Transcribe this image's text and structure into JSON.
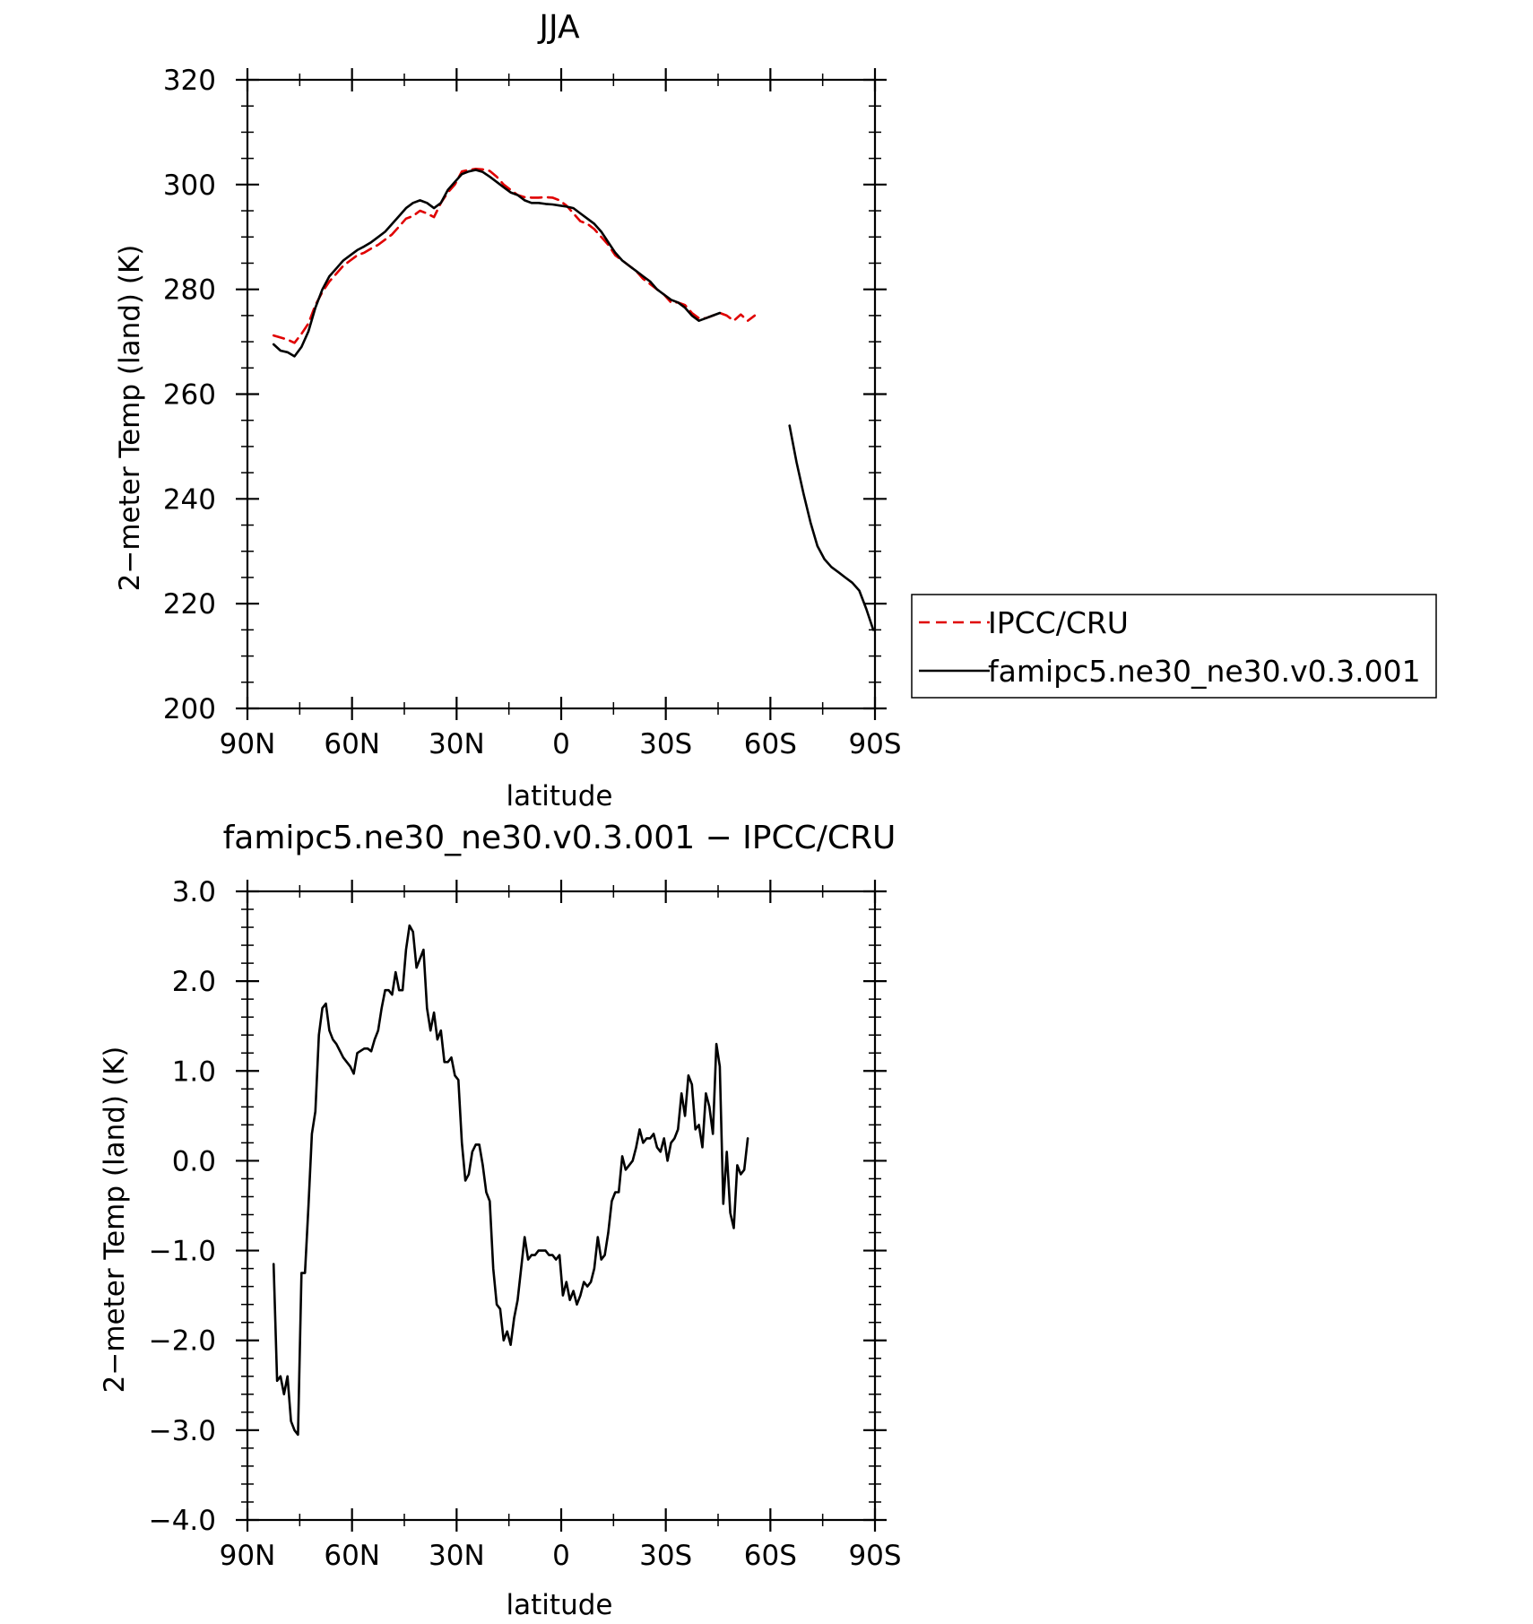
{
  "chart_data": [
    {
      "type": "line",
      "title": "JJA",
      "xlabel": "latitude",
      "ylabel": "2−meter Temp (land) (K)",
      "xlim": [
        90,
        -90
      ],
      "ylim": [
        200,
        320
      ],
      "x_tick_values": [
        90,
        60,
        30,
        0,
        -30,
        -60,
        -90
      ],
      "x_tick_labels": [
        "90N",
        "60N",
        "30N",
        "0",
        "30S",
        "60S",
        "90S"
      ],
      "y_tick_values": [
        200,
        220,
        240,
        260,
        280,
        300,
        320
      ],
      "y_tick_labels": [
        "200",
        "220",
        "240",
        "260",
        "280",
        "300",
        "320"
      ],
      "grid": false,
      "legend": {
        "placement": "outside-right",
        "entries": [
          "IPCC/CRU",
          "famipc5.ne30_ne30.v0.3.001"
        ]
      },
      "series": [
        {
          "name": "IPCC/CRU",
          "color": "#e00000",
          "dash": "dashed",
          "x": [
            82.5,
            80.5,
            78.5,
            76.5,
            74.5,
            72.5,
            70.5,
            68.5,
            66.5,
            64.5,
            62.5,
            60.5,
            58.5,
            56.5,
            54.5,
            52.5,
            50.5,
            48.5,
            46.5,
            44.5,
            42.5,
            40.5,
            38.5,
            36.5,
            34.5,
            32.5,
            30.5,
            28.5,
            26.5,
            24.5,
            22.5,
            20.5,
            18.5,
            16.5,
            14.5,
            12.5,
            10.5,
            8.5,
            6.5,
            4.5,
            2.5,
            0.5,
            -1.5,
            -3.5,
            -5.5,
            -7.5,
            -9.5,
            -11.5,
            -13.5,
            -15.5,
            -17.5,
            -19.5,
            -21.5,
            -23.5,
            -25.5,
            -27.5,
            -29.5,
            -31.5,
            -33.5,
            -35.5,
            -37.5,
            -39.5,
            -41.5,
            -43.5,
            -45.5,
            -47.5,
            -49.5,
            -51.5,
            -53.5,
            -55.5
          ],
          "values": [
            271.2,
            270.8,
            270.4,
            269.8,
            271.5,
            273.5,
            277.0,
            279.5,
            281.5,
            283.0,
            284.5,
            285.5,
            286.5,
            287.0,
            287.8,
            288.5,
            289.5,
            290.5,
            292.0,
            293.5,
            294.0,
            295.0,
            294.5,
            293.8,
            296.5,
            298.5,
            300.0,
            302.5,
            302.8,
            303.0,
            302.9,
            302.6,
            301.5,
            300.0,
            299.0,
            298.0,
            297.6,
            297.5,
            297.5,
            297.6,
            297.5,
            297.0,
            296.0,
            294.5,
            293.0,
            292.5,
            291.5,
            290.0,
            288.5,
            286.5,
            285.5,
            284.5,
            283.5,
            282.0,
            281.0,
            280.0,
            279.0,
            277.5,
            277.5,
            277.0,
            275.5,
            274.5,
            274.5,
            275.0,
            275.5,
            275.0,
            274.0,
            275.2,
            274.0,
            275.0
          ]
        },
        {
          "name": "famipc5.ne30_ne30.v0.3.001",
          "color": "#000000",
          "dash": "solid",
          "x": [
            82.5,
            80.5,
            78.5,
            76.5,
            74.5,
            72.5,
            70.5,
            68.5,
            66.5,
            64.5,
            62.5,
            60.5,
            58.5,
            56.5,
            54.5,
            52.5,
            50.5,
            48.5,
            46.5,
            44.5,
            42.5,
            40.5,
            38.5,
            36.5,
            34.5,
            32.5,
            30.5,
            28.5,
            26.5,
            24.5,
            22.5,
            20.5,
            18.5,
            16.5,
            14.5,
            12.5,
            10.5,
            8.5,
            6.5,
            4.5,
            2.5,
            0.5,
            -1.5,
            -3.5,
            -5.5,
            -7.5,
            -9.5,
            -11.5,
            -13.5,
            -15.5,
            -17.5,
            -19.5,
            -21.5,
            -23.5,
            -25.5,
            -27.5,
            -29.5,
            -31.5,
            -33.5,
            -35.5,
            -37.5,
            -39.5,
            -41.5,
            -43.5,
            -45.5,
            -47.5,
            -49.5,
            -51.5,
            -53.5,
            null,
            -65.5,
            -67.5,
            -69.5,
            -71.5,
            -73.5,
            -75.5,
            -77.5,
            -79.5,
            -81.5,
            -83.5,
            -85.5,
            -87.5,
            -89.5
          ],
          "values": [
            269.5,
            268.3,
            268.0,
            267.2,
            269.0,
            272.0,
            276.5,
            280.0,
            282.5,
            284.0,
            285.5,
            286.5,
            287.5,
            288.2,
            289.0,
            290.0,
            291.0,
            292.5,
            294.0,
            295.5,
            296.5,
            297.0,
            296.5,
            295.5,
            296.5,
            299.0,
            300.5,
            302.0,
            302.5,
            302.8,
            302.4,
            301.5,
            300.5,
            299.5,
            298.5,
            298.0,
            297.0,
            296.5,
            296.5,
            296.3,
            296.2,
            296.0,
            295.8,
            295.5,
            294.5,
            293.5,
            292.5,
            291.0,
            289.0,
            287.0,
            285.5,
            284.5,
            283.5,
            282.5,
            281.5,
            280.0,
            279.0,
            278.0,
            277.5,
            276.5,
            275.0,
            274.0,
            274.5,
            275.0,
            275.5,
            null,
            null,
            null,
            null,
            null,
            254.0,
            247.0,
            241.0,
            235.5,
            231.0,
            228.5,
            227.0,
            226.0,
            225.0,
            224.0,
            222.5,
            219.0,
            215.0
          ]
        }
      ]
    },
    {
      "type": "line",
      "title": "famipc5.ne30_ne30.v0.3.001 − IPCC/CRU",
      "xlabel": "latitude",
      "ylabel": "2−meter Temp (land) (K)",
      "xlim": [
        90,
        -90
      ],
      "ylim": [
        -4.0,
        3.0
      ],
      "x_tick_values": [
        90,
        60,
        30,
        0,
        -30,
        -60,
        -90
      ],
      "x_tick_labels": [
        "90N",
        "60N",
        "30N",
        "0",
        "30S",
        "60S",
        "90S"
      ],
      "y_tick_values": [
        -4.0,
        -3.0,
        -2.0,
        -1.0,
        0.0,
        1.0,
        2.0,
        3.0
      ],
      "y_tick_labels": [
        "−4.0",
        "−3.0",
        "−2.0",
        "−1.0",
        "0.0",
        "1.0",
        "2.0",
        "3.0"
      ],
      "grid": false,
      "series": [
        {
          "color": "#000000",
          "dash": "solid",
          "x": [
            82.5,
            81.5,
            80.5,
            79.5,
            78.5,
            77.5,
            76.5,
            75.5,
            74.5,
            73.5,
            72.5,
            71.5,
            70.5,
            69.5,
            68.5,
            67.5,
            66.5,
            65.5,
            64.5,
            62.5,
            60.5,
            59.5,
            58.5,
            56.5,
            55.5,
            54.5,
            53.5,
            52.5,
            51.5,
            50.5,
            49.5,
            48.5,
            47.5,
            46.5,
            45.5,
            44.5,
            43.5,
            42.5,
            41.5,
            40.5,
            39.5,
            38.5,
            37.5,
            36.5,
            35.5,
            34.5,
            33.5,
            32.5,
            31.5,
            30.5,
            29.5,
            28.5,
            27.5,
            26.5,
            25.5,
            24.5,
            23.5,
            22.5,
            21.5,
            20.5,
            19.5,
            18.5,
            17.5,
            16.5,
            15.5,
            14.5,
            13.5,
            12.5,
            11.5,
            10.5,
            9.5,
            8.5,
            7.5,
            6.5,
            5.5,
            4.5,
            3.5,
            2.5,
            1.5,
            0.5,
            -0.5,
            -1.5,
            -2.5,
            -3.5,
            -4.5,
            -5.5,
            -6.5,
            -7.5,
            -8.5,
            -9.5,
            -10.5,
            -11.5,
            -12.5,
            -13.5,
            -14.5,
            -15.5,
            -16.5,
            -17.5,
            -18.5,
            -19.5,
            -20.5,
            -21.5,
            -22.5,
            -23.5,
            -24.5,
            -25.5,
            -26.5,
            -27.5,
            -28.5,
            -29.5,
            -30.5,
            -31.5,
            -32.5,
            -33.5,
            -34.5,
            -35.5,
            -36.5,
            -37.5,
            -38.5,
            -39.5,
            -40.5,
            -41.5,
            -42.5,
            -43.5,
            -44.5,
            -45.5,
            -46.5,
            -47.5,
            -48.5,
            -49.5,
            -50.5,
            -51.5,
            -52.5,
            -53.5
          ],
          "values": [
            -1.15,
            -2.45,
            -2.4,
            -2.6,
            -2.4,
            -2.9,
            -3.0,
            -3.05,
            -1.25,
            -1.25,
            -0.5,
            0.3,
            0.55,
            1.4,
            1.7,
            1.75,
            1.45,
            1.35,
            1.3,
            1.15,
            1.05,
            0.97,
            1.2,
            1.25,
            1.25,
            1.22,
            1.35,
            1.45,
            1.7,
            1.9,
            1.9,
            1.85,
            2.1,
            1.9,
            1.9,
            2.35,
            2.62,
            2.55,
            2.15,
            2.25,
            2.35,
            1.7,
            1.45,
            1.65,
            1.35,
            1.45,
            1.1,
            1.1,
            1.15,
            0.95,
            0.9,
            0.2,
            -0.22,
            -0.15,
            0.1,
            0.18,
            0.18,
            -0.05,
            -0.35,
            -0.45,
            -1.2,
            -1.6,
            -1.65,
            -2.0,
            -1.9,
            -2.05,
            -1.75,
            -1.55,
            -1.2,
            -0.85,
            -1.1,
            -1.05,
            -1.05,
            -1.0,
            -1.0,
            -1.0,
            -1.05,
            -1.05,
            -1.1,
            -1.05,
            -1.5,
            -1.35,
            -1.55,
            -1.45,
            -1.6,
            -1.5,
            -1.35,
            -1.4,
            -1.35,
            -1.2,
            -0.85,
            -1.1,
            -1.05,
            -0.8,
            -0.45,
            -0.35,
            -0.35,
            0.05,
            -0.1,
            -0.05,
            0.0,
            0.15,
            0.35,
            0.2,
            0.25,
            0.25,
            0.3,
            0.15,
            0.1,
            0.25,
            0.0,
            0.2,
            0.25,
            0.35,
            0.75,
            0.5,
            0.95,
            0.85,
            0.35,
            0.4,
            0.15,
            0.75,
            0.6,
            0.3,
            1.3,
            1.05,
            -0.48,
            0.1,
            -0.58,
            -0.75,
            -0.05,
            -0.15,
            -0.1,
            0.25
          ]
        }
      ]
    }
  ]
}
